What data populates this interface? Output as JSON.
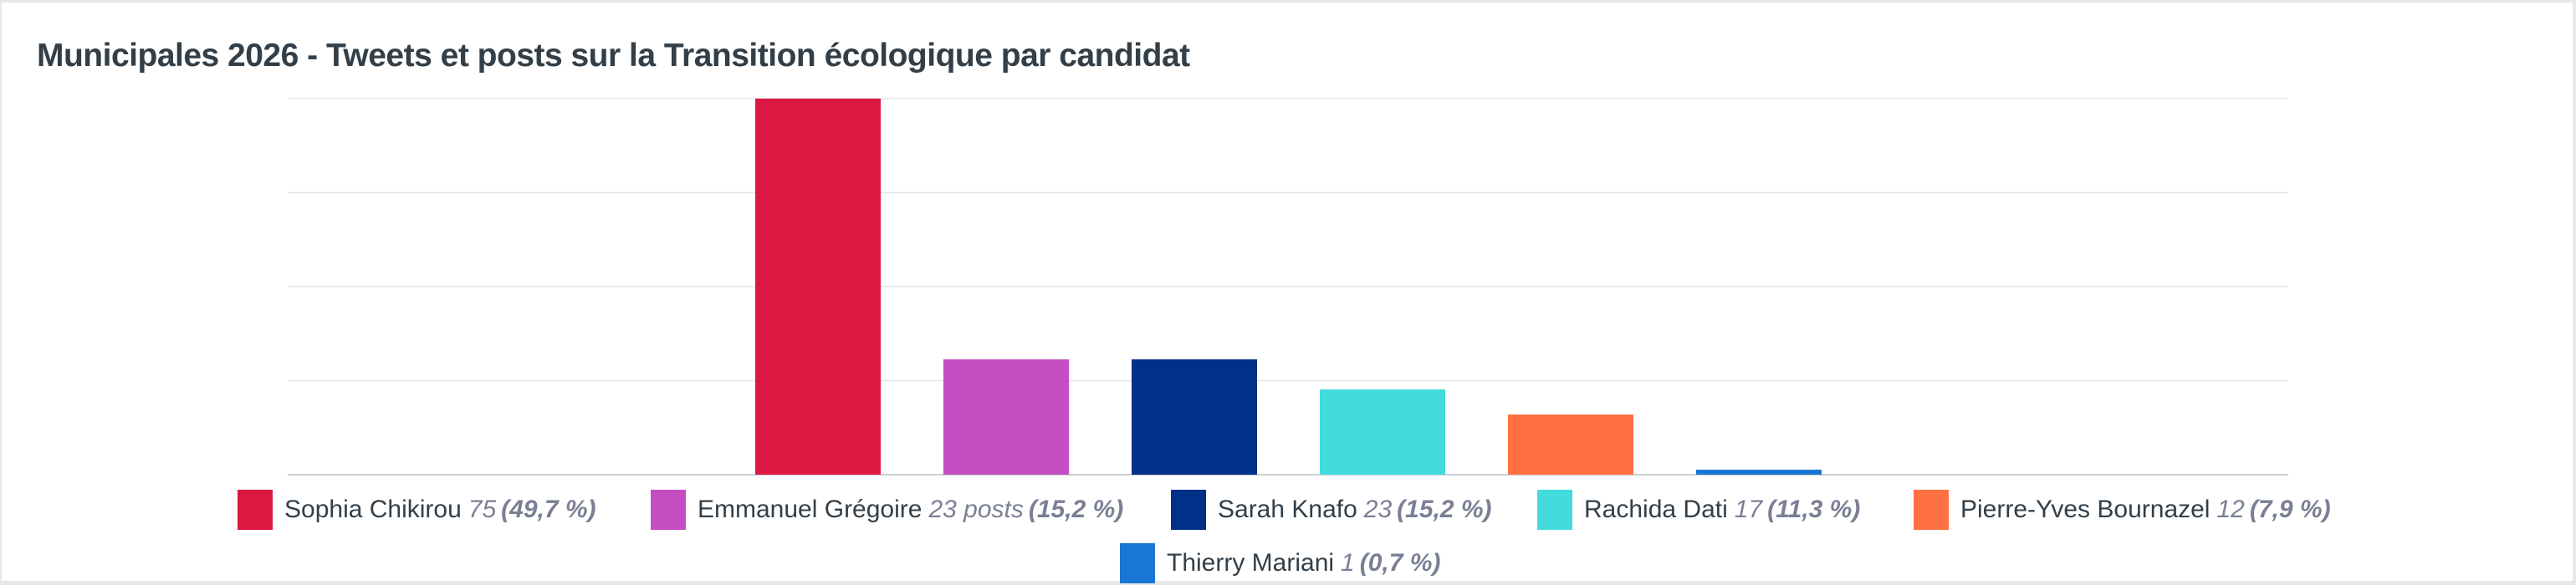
{
  "chart_data": {
    "type": "bar",
    "title": "Municipales 2026 - Tweets et posts sur la Transition écologique par candidat",
    "categories": [
      "Sophia Chikirou",
      "Emmanuel Grégoire",
      "Sarah Knafo",
      "Rachida Dati",
      "Pierre-Yves Bournazel",
      "Thierry Mariani"
    ],
    "values": [
      75,
      23,
      23,
      17,
      12,
      1
    ],
    "ylim": [
      0,
      75
    ],
    "grid": true,
    "legend_position": "bottom",
    "colors": [
      "#dc1842",
      "#c44dc1",
      "#003087",
      "#43dbde",
      "#ff7043",
      "#1976d2"
    ],
    "legend": [
      {
        "name": "Sophia Chikirou",
        "value": "75",
        "percent": "(49,7 %)"
      },
      {
        "name": "Emmanuel Grégoire",
        "value": "23 posts",
        "percent": "(15,2 %)"
      },
      {
        "name": "Sarah Knafo",
        "value": "23",
        "percent": "(15,2 %)"
      },
      {
        "name": "Rachida Dati",
        "value": "17",
        "percent": "(11,3 %)"
      },
      {
        "name": "Pierre-Yves Bournazel",
        "value": "12",
        "percent": "(7,9 %)"
      },
      {
        "name": "Thierry Mariani",
        "value": "1",
        "percent": "(0,7 %)"
      }
    ]
  }
}
